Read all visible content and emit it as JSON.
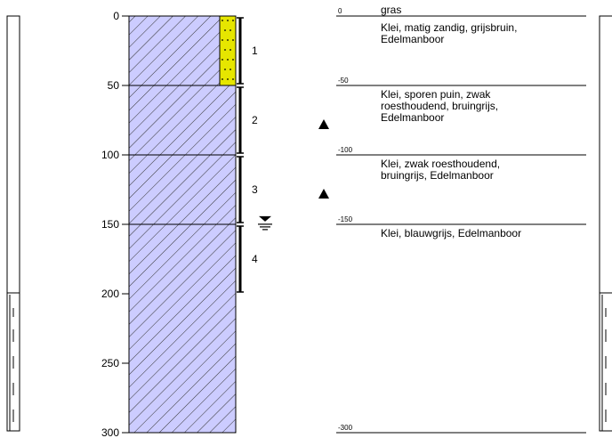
{
  "depth_axis": {
    "ticks": [
      0,
      50,
      100,
      150,
      200,
      250,
      300
    ]
  },
  "layers": [
    {
      "top": 0,
      "bottom": 50,
      "depth_label": "0",
      "lines": [
        "Klei, matig zandig, grijsbruin,",
        "Edelmanboor"
      ]
    },
    {
      "top": 50,
      "bottom": 100,
      "depth_label": "-50",
      "lines": [
        "Klei, sporen puin, zwak",
        "roesthoudend, bruingrijs,",
        "Edelmanboor"
      ]
    },
    {
      "top": 100,
      "bottom": 150,
      "depth_label": "-100",
      "lines": [
        "Klei, zwak roesthoudend,",
        "bruingrijs, Edelmanboor"
      ]
    },
    {
      "top": 150,
      "bottom": 300,
      "depth_label": "-150",
      "lines": [
        "Klei, blauwgrijs, Edelmanboor"
      ]
    }
  ],
  "surface_label": "gras",
  "end_depth_label": "-300",
  "sand_interval": {
    "top": 0,
    "bottom": 50
  },
  "samples": [
    {
      "label": "1",
      "top": 0,
      "bottom": 50
    },
    {
      "label": "2",
      "top": 50,
      "bottom": 100
    },
    {
      "label": "3",
      "top": 100,
      "bottom": 150
    },
    {
      "label": "4",
      "top": 150,
      "bottom": 200
    }
  ],
  "groundwater_depth": 148,
  "triangle_depths": [
    75,
    125
  ],
  "colors": {
    "clay_fill": "#ccccff",
    "hatch": "#333333",
    "sand_fill": "#e6e600",
    "line": "#000000"
  },
  "icons": {
    "groundwater": "groundwater-level-icon",
    "marker": "triangle-marker-icon"
  }
}
